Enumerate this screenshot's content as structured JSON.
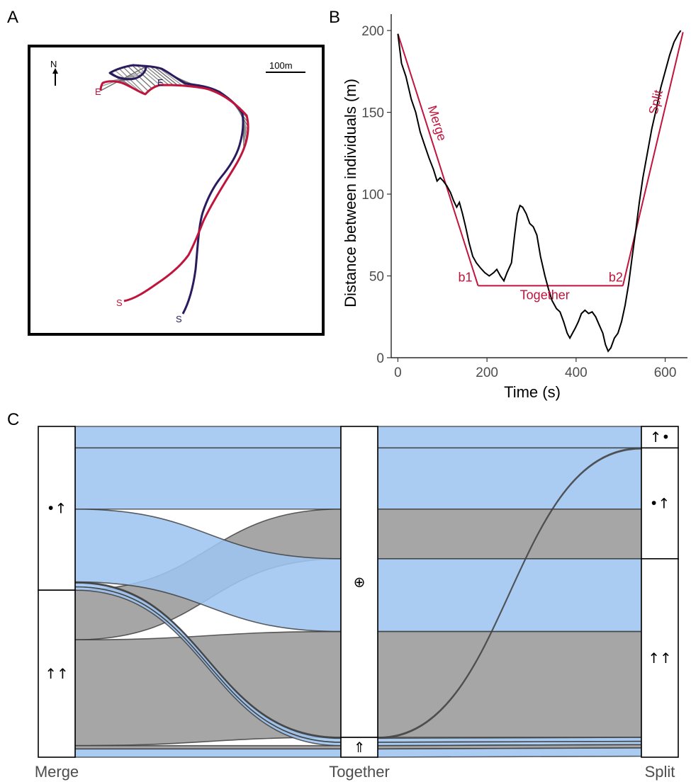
{
  "panels": {
    "a": "A",
    "b": "B",
    "c": "C"
  },
  "map": {
    "north_label": "N",
    "scale_label": "100m",
    "individual_1": {
      "color": "#c0143c",
      "start_label": "S",
      "end_label": "E"
    },
    "individual_2": {
      "color": "#2a1a5e",
      "start_label": "S",
      "end_label": "E"
    }
  },
  "chart_data": [
    {
      "type": "line",
      "xlabel": "Time (s)",
      "ylabel": "Distance between individuals (m)",
      "xlim": [
        -15,
        650
      ],
      "ylim": [
        0,
        210
      ],
      "xticks": [
        0,
        200,
        400,
        600
      ],
      "yticks": [
        0,
        50,
        100,
        150,
        200
      ],
      "grid": false,
      "series": [
        {
          "color": "#000000",
          "x": [
            0,
            8,
            18,
            30,
            40,
            50,
            60,
            70,
            80,
            88,
            95,
            102,
            110,
            118,
            125,
            132,
            138,
            145,
            152,
            160,
            168,
            176,
            185,
            195,
            205,
            215,
            222,
            230,
            238,
            245,
            255,
            262,
            268,
            274,
            280,
            288,
            296,
            304,
            312,
            320,
            330,
            338,
            346,
            356,
            364,
            372,
            380,
            386,
            392,
            398,
            405,
            412,
            420,
            428,
            436,
            444,
            452,
            460,
            466,
            472,
            478,
            486,
            494,
            502,
            510,
            518,
            526,
            534,
            542,
            550,
            560,
            570,
            580,
            590,
            600,
            610,
            620,
            630,
            635
          ],
          "y": [
            198,
            180,
            172,
            158,
            150,
            138,
            130,
            122,
            115,
            108,
            110,
            108,
            105,
            101,
            96,
            92,
            95,
            88,
            80,
            70,
            62,
            58,
            55,
            52,
            50,
            52,
            54,
            50,
            47,
            52,
            58,
            75,
            88,
            93,
            92,
            88,
            82,
            80,
            75,
            62,
            50,
            42,
            35,
            30,
            28,
            22,
            15,
            12,
            15,
            18,
            22,
            27,
            29,
            27,
            28,
            25,
            20,
            15,
            8,
            4,
            6,
            12,
            15,
            22,
            32,
            45,
            62,
            78,
            95,
            110,
            125,
            140,
            152,
            165,
            175,
            185,
            193,
            198,
            200
          ]
        }
      ],
      "segments": [
        {
          "label": "Merge",
          "x": [
            0,
            180
          ],
          "y": [
            198,
            44
          ]
        },
        {
          "label": "Together",
          "x": [
            180,
            505
          ],
          "y": [
            44,
            44
          ]
        },
        {
          "label": "Split",
          "x": [
            505,
            640
          ],
          "y": [
            44,
            199
          ]
        }
      ],
      "breakpoints": [
        {
          "label": "b1",
          "x": 180,
          "y": 44
        },
        {
          "label": "b2",
          "x": 505,
          "y": 44
        }
      ]
    },
    {
      "type": "alluvial",
      "axes": [
        "Merge",
        "Together",
        "Split"
      ],
      "strata": {
        "Merge": [
          {
            "label": "•↑",
            "size": 0.495
          },
          {
            "label": "↑↑",
            "size": 0.505
          }
        ],
        "Together": [
          {
            "label": "⊕",
            "size": 0.94
          },
          {
            "label": "⇑",
            "size": 0.06
          }
        ],
        "Split": [
          {
            "label": "↑•",
            "size": 0.065
          },
          {
            "label": "•↑",
            "size": 0.335
          },
          {
            "label": "↑↑",
            "size": 0.6
          }
        ]
      },
      "flow_colors": {
        "blue": "#9fc5f0",
        "grey": "#9a9a9a"
      },
      "flows": [
        {
          "merge": "•↑",
          "together": "⊕",
          "split": "↑•",
          "size": 0.065,
          "color": "blue"
        },
        {
          "merge": "•↑",
          "together": "⊕",
          "split": "•↑",
          "size": 0.185,
          "color": "blue"
        },
        {
          "merge": "↑↑",
          "together": "⊕",
          "split": "•↑",
          "size": 0.15,
          "color": "grey"
        },
        {
          "merge": "•↑",
          "together": "⊕",
          "split": "↑↑",
          "size": 0.22,
          "color": "blue"
        },
        {
          "merge": "↑↑",
          "together": "⊕",
          "split": "↑↑",
          "size": 0.32,
          "color": "grey"
        },
        {
          "merge": "•↑",
          "together": "⇑",
          "split": "↑•",
          "size": 0.003,
          "color": "grey"
        },
        {
          "merge": "•↑",
          "together": "⇑",
          "split": "↑↑",
          "size": 0.012,
          "color": "blue"
        },
        {
          "merge": "•↑",
          "together": "⇑",
          "split": "↑↑",
          "size": 0.01,
          "color": "blue"
        },
        {
          "merge": "↑↑",
          "together": "⇑",
          "split": "↑↑",
          "size": 0.01,
          "color": "grey"
        },
        {
          "merge": "↑↑",
          "together": "⇑",
          "split": "↑↑",
          "size": 0.025,
          "color": "blue"
        }
      ]
    }
  ]
}
